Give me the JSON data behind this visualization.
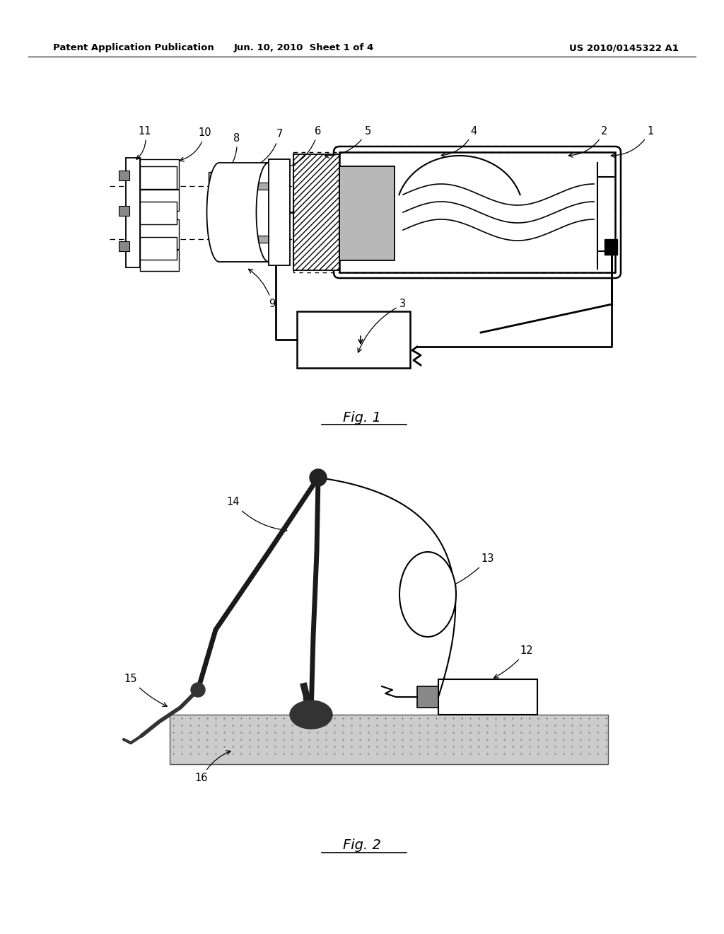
{
  "background_color": "#ffffff",
  "header_left": "Patent Application Publication",
  "header_center": "Jun. 10, 2010  Sheet 1 of 4",
  "header_right": "US 2010/0145322 A1",
  "fig1_label": "Fig. 1",
  "fig2_label": "Fig. 2"
}
